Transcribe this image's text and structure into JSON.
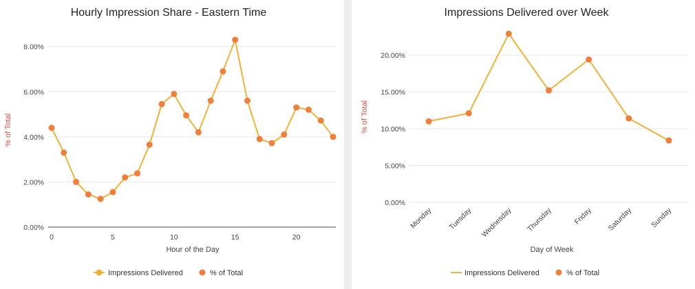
{
  "chart_data": [
    {
      "type": "line",
      "title": "Hourly Impression Share - Eastern Time",
      "xlabel": "Hour of the Day",
      "ylabel": "% of Total",
      "x": [
        0,
        1,
        2,
        3,
        4,
        5,
        6,
        7,
        8,
        9,
        10,
        11,
        12,
        13,
        14,
        15,
        16,
        17,
        18,
        19,
        20,
        21,
        22,
        23
      ],
      "xlim": [
        0,
        23
      ],
      "xticks": [
        0,
        5,
        10,
        15,
        20
      ],
      "xtick_labels": [
        "0",
        "5",
        "10",
        "15",
        "20"
      ],
      "ylim": [
        0,
        8.6
      ],
      "yticks": [
        0,
        2,
        4,
        6,
        8
      ],
      "ytick_labels": [
        "0.00%",
        "2.00%",
        "4.00%",
        "6.00%",
        "8.00%"
      ],
      "series": [
        {
          "name": "Impressions Delivered",
          "style": "line",
          "color": "#f2b134",
          "values": [
            4.4,
            3.3,
            2.0,
            1.45,
            1.25,
            1.55,
            2.2,
            2.38,
            3.65,
            5.45,
            5.9,
            4.95,
            4.2,
            5.6,
            6.9,
            8.3,
            5.6,
            3.9,
            3.72,
            4.1,
            5.3,
            5.2,
            4.72,
            4.0
          ]
        },
        {
          "name": "% of Total",
          "style": "points",
          "color": "#f07f3c",
          "values": [
            4.4,
            3.3,
            2.0,
            1.45,
            1.25,
            1.55,
            2.2,
            2.38,
            3.65,
            5.45,
            5.9,
            4.95,
            4.2,
            5.6,
            6.9,
            8.3,
            5.6,
            3.9,
            3.72,
            4.1,
            5.3,
            5.2,
            4.72,
            4.0
          ]
        }
      ],
      "legend": {
        "position": "bottom",
        "items": [
          {
            "label": "Impressions Delivered",
            "marker": "line-dot",
            "color": "#f2b134"
          },
          {
            "label": "% of Total",
            "marker": "dot",
            "color": "#f07f3c"
          }
        ]
      },
      "grid": true
    },
    {
      "type": "line",
      "title": "Impressions Delivered over Week",
      "xlabel": "Day of Week",
      "ylabel": "% of Total",
      "categories": [
        "Monday",
        "Tuesday",
        "Wednesday",
        "Thursday",
        "Friday",
        "Saturday",
        "Sunday"
      ],
      "ylim": [
        0,
        23
      ],
      "yticks": [
        0,
        5,
        10,
        15,
        20
      ],
      "ytick_labels": [
        "0.00%",
        "5.00%",
        "10.00%",
        "15.00%",
        "20.00%"
      ],
      "series": [
        {
          "name": "Impressions Delivered",
          "style": "line",
          "color": "#f2b134",
          "values": [
            11.0,
            12.1,
            22.9,
            15.2,
            19.4,
            11.4,
            8.4
          ]
        },
        {
          "name": "% of Total",
          "style": "points",
          "color": "#f07f3c",
          "values": [
            11.0,
            12.1,
            22.9,
            15.2,
            19.4,
            11.4,
            8.4
          ]
        }
      ],
      "legend": {
        "position": "bottom",
        "items": [
          {
            "label": "Impressions Delivered",
            "marker": "line",
            "color": "#f2b134"
          },
          {
            "label": "% of Total",
            "marker": "dot",
            "color": "#f07f3c"
          }
        ]
      },
      "grid": true
    }
  ]
}
